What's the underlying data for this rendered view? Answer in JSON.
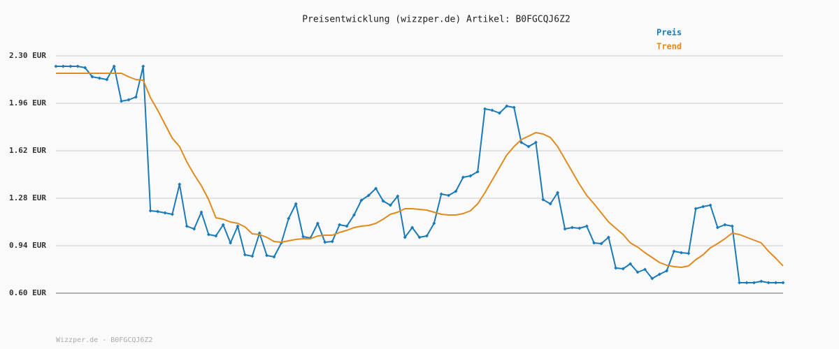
{
  "chart_data": {
    "type": "line",
    "title": "Preisentwicklung (wizzper.de) Artikel: B0FGCQJ6Z2",
    "footer": "Wizzper.de - B0FGCQJ6Z2",
    "categories": [
      null,
      null,
      null,
      null,
      null,
      null,
      null,
      null,
      null,
      null,
      null,
      null,
      null,
      null,
      null,
      null,
      null,
      null,
      null,
      null,
      null,
      null,
      null,
      null,
      null,
      null,
      null,
      null,
      null,
      null,
      null,
      null,
      null,
      null,
      null,
      null,
      null,
      null,
      null,
      null,
      null,
      null,
      null,
      null,
      null,
      null,
      null,
      null,
      null,
      null,
      null,
      null,
      null,
      null,
      null,
      null,
      null,
      null,
      null,
      null,
      null,
      null,
      null,
      null,
      null,
      null,
      null,
      null,
      null,
      null,
      null,
      null,
      null,
      null,
      null,
      null,
      null,
      null,
      null,
      null,
      null,
      null,
      null,
      null,
      null,
      null,
      null,
      null,
      null,
      null,
      null,
      null,
      null,
      null,
      null,
      null,
      null,
      null,
      null,
      null,
      null
    ],
    "series": [
      {
        "name": "Preis",
        "color": "#1a7ab8",
        "marker": "diamond",
        "values": [
          2.225,
          2.225,
          2.225,
          2.225,
          2.215,
          2.15,
          2.14,
          2.13,
          2.225,
          1.975,
          1.985,
          2.005,
          2.225,
          1.19,
          1.185,
          1.175,
          1.165,
          1.38,
          1.08,
          1.06,
          1.18,
          1.02,
          1.01,
          1.09,
          0.96,
          1.08,
          0.875,
          0.865,
          1.03,
          0.87,
          0.86,
          0.96,
          1.135,
          1.24,
          1.005,
          0.995,
          1.1,
          0.965,
          0.97,
          1.09,
          1.08,
          1.16,
          1.265,
          1.3,
          1.35,
          1.26,
          1.23,
          1.295,
          1.0,
          1.07,
          1.0,
          1.01,
          1.1,
          1.31,
          1.3,
          1.33,
          1.43,
          1.44,
          1.47,
          1.92,
          1.91,
          1.89,
          1.94,
          1.93,
          1.68,
          1.65,
          1.68,
          1.27,
          1.24,
          1.32,
          1.06,
          1.07,
          1.065,
          1.08,
          0.96,
          0.955,
          1.0,
          0.78,
          0.775,
          0.81,
          0.75,
          0.77,
          0.705,
          0.735,
          0.76,
          0.9,
          0.89,
          0.885,
          1.205,
          1.22,
          1.23,
          1.07,
          1.09,
          1.08,
          0.675,
          0.675,
          0.675,
          0.685,
          0.675,
          0.675,
          0.675
        ]
      },
      {
        "name": "Trend",
        "color": "#e08a1e",
        "values": [
          2.175,
          2.175,
          2.175,
          2.175,
          2.175,
          2.175,
          2.175,
          2.175,
          2.175,
          2.175,
          2.15,
          2.13,
          2.125,
          2.0,
          1.91,
          1.81,
          1.71,
          1.65,
          1.54,
          1.45,
          1.37,
          1.27,
          1.14,
          1.13,
          1.11,
          1.1,
          1.075,
          1.025,
          1.02,
          1.0,
          0.97,
          0.965,
          0.975,
          0.985,
          0.99,
          0.99,
          1.01,
          1.015,
          1.015,
          1.035,
          1.05,
          1.07,
          1.08,
          1.085,
          1.1,
          1.13,
          1.165,
          1.18,
          1.205,
          1.205,
          1.2,
          1.195,
          1.18,
          1.165,
          1.16,
          1.16,
          1.17,
          1.19,
          1.24,
          1.32,
          1.41,
          1.5,
          1.59,
          1.65,
          1.7,
          1.725,
          1.75,
          1.74,
          1.715,
          1.65,
          1.56,
          1.47,
          1.38,
          1.3,
          1.24,
          1.175,
          1.11,
          1.065,
          1.02,
          0.96,
          0.93,
          0.89,
          0.855,
          0.82,
          0.8,
          0.79,
          0.785,
          0.795,
          0.84,
          0.875,
          0.925,
          0.955,
          0.99,
          1.03,
          1.02,
          1.0,
          0.98,
          0.96,
          0.9,
          0.85,
          0.795
        ]
      }
    ],
    "ylim": [
      0.6,
      2.3
    ],
    "yticks": [
      {
        "value": 0.6,
        "label": "0.60 EUR"
      },
      {
        "value": 0.94,
        "label": "0.94 EUR"
      },
      {
        "value": 1.28,
        "label": "1.28 EUR"
      },
      {
        "value": 1.62,
        "label": "1.62 EUR"
      },
      {
        "value": 1.96,
        "label": "1.96 EUR"
      },
      {
        "value": 2.3,
        "label": "2.30 EUR"
      }
    ],
    "grid": true
  }
}
